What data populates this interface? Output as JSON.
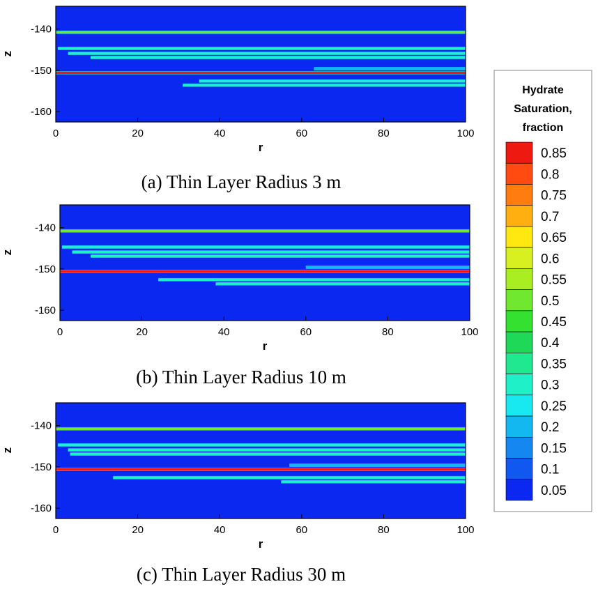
{
  "colorbar": {
    "title_lines": [
      "Hydrate",
      "Saturation,",
      "fraction"
    ],
    "levels": [
      0.85,
      0.8,
      0.75,
      0.7,
      0.65,
      0.6,
      0.55,
      0.5,
      0.45,
      0.4,
      0.35,
      0.3,
      0.25,
      0.2,
      0.15,
      0.1,
      0.05
    ],
    "level_labels": [
      "0.85",
      "0.8",
      "0.75",
      "0.7",
      "0.65",
      "0.6",
      "0.55",
      "0.5",
      "0.45",
      "0.4",
      "0.35",
      "0.3",
      "0.25",
      "0.2",
      "0.15",
      "0.1",
      "0.05"
    ],
    "colors": [
      "#ee1a12",
      "#ff4a10",
      "#ff7d10",
      "#ffb010",
      "#ffe810",
      "#d8f020",
      "#a8ee20",
      "#70e830",
      "#34e030",
      "#20d858",
      "#20e890",
      "#20f0c8",
      "#18e8f0",
      "#14b8f0",
      "#1488f0",
      "#1058f0",
      "#0a28f0"
    ]
  },
  "chart_data": [
    {
      "type": "heatmap",
      "caption": "(a) Thin Layer Radius 3 m",
      "xlabel": "r",
      "ylabel": "z",
      "xlim": [
        0,
        100
      ],
      "ylim": [
        -162.5,
        -134.5
      ],
      "xticks": [
        0,
        20,
        40,
        60,
        80,
        100
      ],
      "xtick_labels": [
        "0",
        "20",
        "40",
        "60",
        "80",
        "100"
      ],
      "yticks": [
        -140,
        -150,
        -160
      ],
      "ytick_labels": [
        "-140",
        "-150",
        "-160"
      ],
      "background_saturation": 0.05,
      "layers": [
        {
          "z": -140.8,
          "r_start": 0,
          "saturation": 0.5
        },
        {
          "z": -144.7,
          "r_start": 0.5,
          "saturation": 0.3
        },
        {
          "z": -145.9,
          "r_start": 3,
          "saturation": 0.3
        },
        {
          "z": -146.9,
          "r_start": 8.5,
          "saturation": 0.3
        },
        {
          "z": -149.6,
          "r_start": 63,
          "saturation": 0.2
        },
        {
          "z": -150.6,
          "r_start": 0,
          "saturation": 0.85
        },
        {
          "z": -152.6,
          "r_start": 35,
          "saturation": 0.3
        },
        {
          "z": -153.6,
          "r_start": 31,
          "saturation": 0.3
        }
      ]
    },
    {
      "type": "heatmap",
      "caption": "(b) Thin Layer Radius 10 m",
      "xlabel": "r",
      "ylabel": "z",
      "xlim": [
        0,
        100
      ],
      "ylim": [
        -162.5,
        -134.5
      ],
      "xticks": [
        0,
        20,
        40,
        60,
        80,
        100
      ],
      "xtick_labels": [
        "0",
        "20",
        "40",
        "60",
        "80",
        "100"
      ],
      "yticks": [
        -140,
        -150,
        -160
      ],
      "ytick_labels": [
        "-140",
        "-150",
        "-160"
      ],
      "background_saturation": 0.05,
      "layers": [
        {
          "z": -140.8,
          "r_start": 0,
          "saturation": 0.5
        },
        {
          "z": -144.7,
          "r_start": 0.5,
          "saturation": 0.3
        },
        {
          "z": -145.9,
          "r_start": 3,
          "saturation": 0.3
        },
        {
          "z": -146.9,
          "r_start": 7.5,
          "saturation": 0.3
        },
        {
          "z": -149.6,
          "r_start": 60,
          "saturation": 0.2
        },
        {
          "z": -150.6,
          "r_start": 0,
          "saturation": 0.85
        },
        {
          "z": -152.6,
          "r_start": 24,
          "saturation": 0.3
        },
        {
          "z": -153.6,
          "r_start": 38,
          "saturation": 0.3
        }
      ]
    },
    {
      "type": "heatmap",
      "caption": "(c) Thin Layer Radius 30 m",
      "xlabel": "r",
      "ylabel": "z",
      "xlim": [
        0,
        100
      ],
      "ylim": [
        -162.5,
        -134.5
      ],
      "xticks": [
        0,
        20,
        40,
        60,
        80,
        100
      ],
      "xtick_labels": [
        "0",
        "20",
        "40",
        "60",
        "80",
        "100"
      ],
      "yticks": [
        -140,
        -150,
        -160
      ],
      "ytick_labels": [
        "-140",
        "-150",
        "-160"
      ],
      "background_saturation": 0.05,
      "layers": [
        {
          "z": -140.8,
          "r_start": 0,
          "saturation": 0.5
        },
        {
          "z": -144.7,
          "r_start": 0.5,
          "saturation": 0.3
        },
        {
          "z": -145.9,
          "r_start": 3,
          "saturation": 0.3
        },
        {
          "z": -146.9,
          "r_start": 3.5,
          "saturation": 0.3
        },
        {
          "z": -149.6,
          "r_start": 57,
          "saturation": 0.2
        },
        {
          "z": -150.6,
          "r_start": 0,
          "saturation": 0.85
        },
        {
          "z": -152.6,
          "r_start": 14,
          "saturation": 0.3
        },
        {
          "z": -153.6,
          "r_start": 55,
          "saturation": 0.3
        }
      ]
    }
  ]
}
